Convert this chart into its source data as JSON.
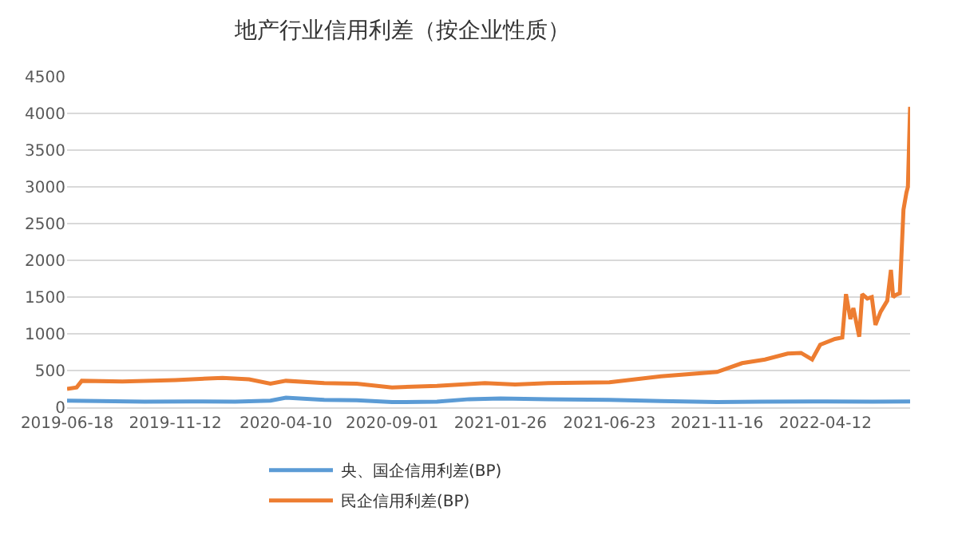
{
  "chart_data": {
    "type": "line",
    "title": "地产行业信用利差（按企业性质）",
    "xlim": [
      "2019-06-18",
      "2022-08-05"
    ],
    "xticks": [
      {
        "value": "2019-06-18",
        "label": "2019-06-18"
      },
      {
        "value": "2019-11-12",
        "label": "2019-11-12"
      },
      {
        "value": "2020-04-10",
        "label": "2020-04-10"
      },
      {
        "value": "2020-09-01",
        "label": "2020-09-01"
      },
      {
        "value": "2021-01-26",
        "label": "2021-01-26"
      },
      {
        "value": "2021-06-23",
        "label": "2021-06-23"
      },
      {
        "value": "2021-11-16",
        "label": "2021-11-16"
      },
      {
        "value": "2022-04-12",
        "label": "2022-04-12"
      }
    ],
    "ylim": [
      0,
      4500
    ],
    "yticks": [
      0,
      500,
      1000,
      1500,
      2000,
      2500,
      3000,
      3500,
      4000,
      4500
    ],
    "grid": "y",
    "legend": "bottom",
    "marker": "none",
    "line_style": "solid",
    "series": [
      {
        "name": "央、国企信用利差(BP)",
        "color": "#5b9bd5",
        "x": [
          "2019-06-18",
          "2019-08-01",
          "2019-10-01",
          "2019-12-01",
          "2020-02-01",
          "2020-03-20",
          "2020-04-10",
          "2020-06-01",
          "2020-07-15",
          "2020-09-01",
          "2020-11-01",
          "2020-12-15",
          "2021-01-26",
          "2021-04-01",
          "2021-06-23",
          "2021-09-01",
          "2021-11-16",
          "2022-01-15",
          "2022-04-12",
          "2022-06-15",
          "2022-08-05"
        ],
        "values": [
          90,
          85,
          75,
          80,
          75,
          90,
          130,
          100,
          95,
          70,
          75,
          110,
          120,
          110,
          100,
          85,
          70,
          75,
          80,
          75,
          80
        ]
      },
      {
        "name": "民企信用利差(BP)",
        "color": "#ed7d31",
        "x": [
          "2019-06-18",
          "2019-07-01",
          "2019-07-08",
          "2019-09-01",
          "2019-11-12",
          "2020-01-15",
          "2020-02-20",
          "2020-03-20",
          "2020-04-10",
          "2020-06-01",
          "2020-07-15",
          "2020-09-01",
          "2020-11-01",
          "2021-01-05",
          "2021-02-15",
          "2021-04-01",
          "2021-06-23",
          "2021-09-01",
          "2021-11-16",
          "2021-12-20",
          "2022-01-20",
          "2022-02-20",
          "2022-03-10",
          "2022-03-25",
          "2022-04-05",
          "2022-04-25",
          "2022-05-05",
          "2022-05-10",
          "2022-05-16",
          "2022-05-20",
          "2022-05-28",
          "2022-06-01",
          "2022-06-08",
          "2022-06-14",
          "2022-06-19",
          "2022-06-26",
          "2022-07-05",
          "2022-07-10",
          "2022-07-13",
          "2022-07-17",
          "2022-07-22",
          "2022-07-27",
          "2022-07-31",
          "2022-08-02",
          "2022-08-05"
        ],
        "values": [
          250,
          270,
          360,
          350,
          370,
          400,
          380,
          320,
          360,
          330,
          320,
          270,
          290,
          330,
          310,
          330,
          340,
          420,
          480,
          600,
          650,
          730,
          740,
          650,
          850,
          930,
          950,
          1540,
          1200,
          1350,
          960,
          1540,
          1480,
          1500,
          1120,
          1300,
          1450,
          1870,
          1500,
          1530,
          1550,
          2690,
          2920,
          3000,
          4090
        ]
      }
    ]
  }
}
